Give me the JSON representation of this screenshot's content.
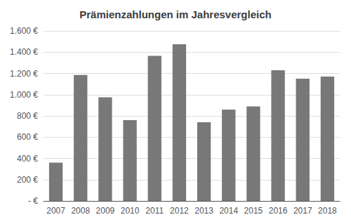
{
  "chart_data": {
    "type": "bar",
    "title": "Prämienzahlungen im Jahresvergleich",
    "categories": [
      "2007",
      "2008",
      "2009",
      "2010",
      "2011",
      "2012",
      "2013",
      "2014",
      "2015",
      "2016",
      "2017",
      "2018"
    ],
    "values": [
      360,
      1185,
      975,
      760,
      1365,
      1475,
      740,
      860,
      890,
      1230,
      1150,
      1170
    ],
    "color": "#787878",
    "ylim": [
      0,
      1600
    ],
    "yticks": [
      {
        "value": 0,
        "label": "- €"
      },
      {
        "value": 200,
        "label": "200 €"
      },
      {
        "value": 400,
        "label": "400 €"
      },
      {
        "value": 600,
        "label": "600 €"
      },
      {
        "value": 800,
        "label": "800 €"
      },
      {
        "value": 1000,
        "label": "1.000 €"
      },
      {
        "value": 1200,
        "label": "1.200 €"
      },
      {
        "value": 1400,
        "label": "1.400 €"
      },
      {
        "value": 1600,
        "label": "1.600 €"
      }
    ],
    "grid": true
  }
}
